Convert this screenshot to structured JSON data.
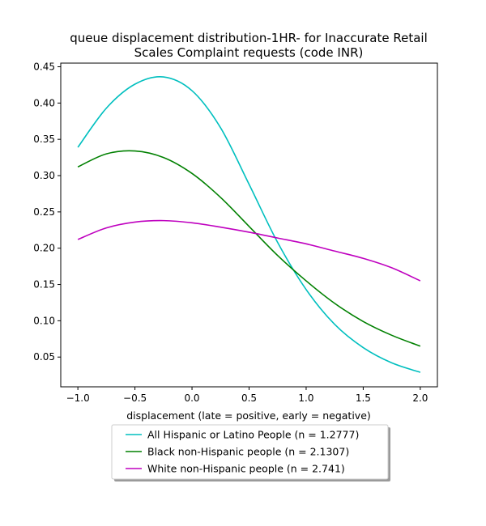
{
  "chart_data": {
    "type": "line",
    "title_lines": [
      "queue displacement distribution-1HR-  for Inaccurate Retail",
      "Scales Complaint  requests (code INR)"
    ],
    "xlabel": "displacement (late = positive, early = negative)",
    "ylabel": "",
    "xlim": [
      -1.15,
      2.15
    ],
    "ylim": [
      0.009,
      0.455
    ],
    "x_ticks": [
      -1.0,
      -0.5,
      0.0,
      0.5,
      1.0,
      1.5,
      2.0
    ],
    "x_tick_labels": [
      "−1.0",
      "−0.5",
      "0.0",
      "0.5",
      "1.0",
      "1.5",
      "2.0"
    ],
    "y_ticks": [
      0.05,
      0.1,
      0.15,
      0.2,
      0.25,
      0.3,
      0.35,
      0.4,
      0.45
    ],
    "y_tick_labels": [
      "0.05",
      "0.10",
      "0.15",
      "0.20",
      "0.25",
      "0.30",
      "0.35",
      "0.40",
      "0.45"
    ],
    "grid": false,
    "legend_position": "below plot, centered",
    "x": [
      -1.0,
      -0.75,
      -0.5,
      -0.25,
      0.0,
      0.25,
      0.5,
      0.75,
      1.0,
      1.25,
      1.5,
      1.75,
      2.0
    ],
    "series": [
      {
        "name": "All Hispanic or Latino People (n = 1.2777)",
        "color": "#00bfbf",
        "values": [
          0.339,
          0.393,
          0.426,
          0.436,
          0.417,
          0.366,
          0.288,
          0.208,
          0.143,
          0.095,
          0.063,
          0.042,
          0.029
        ]
      },
      {
        "name": "Black non-Hispanic people (n = 2.1307)",
        "color": "#008000",
        "values": [
          0.312,
          0.33,
          0.334,
          0.325,
          0.303,
          0.27,
          0.23,
          0.19,
          0.155,
          0.124,
          0.099,
          0.08,
          0.065
        ]
      },
      {
        "name": "White non-Hispanic people (n = 2.741)",
        "color": "#bf00bf",
        "values": [
          0.212,
          0.228,
          0.236,
          0.238,
          0.235,
          0.229,
          0.222,
          0.214,
          0.206,
          0.196,
          0.186,
          0.173,
          0.155
        ]
      }
    ]
  }
}
